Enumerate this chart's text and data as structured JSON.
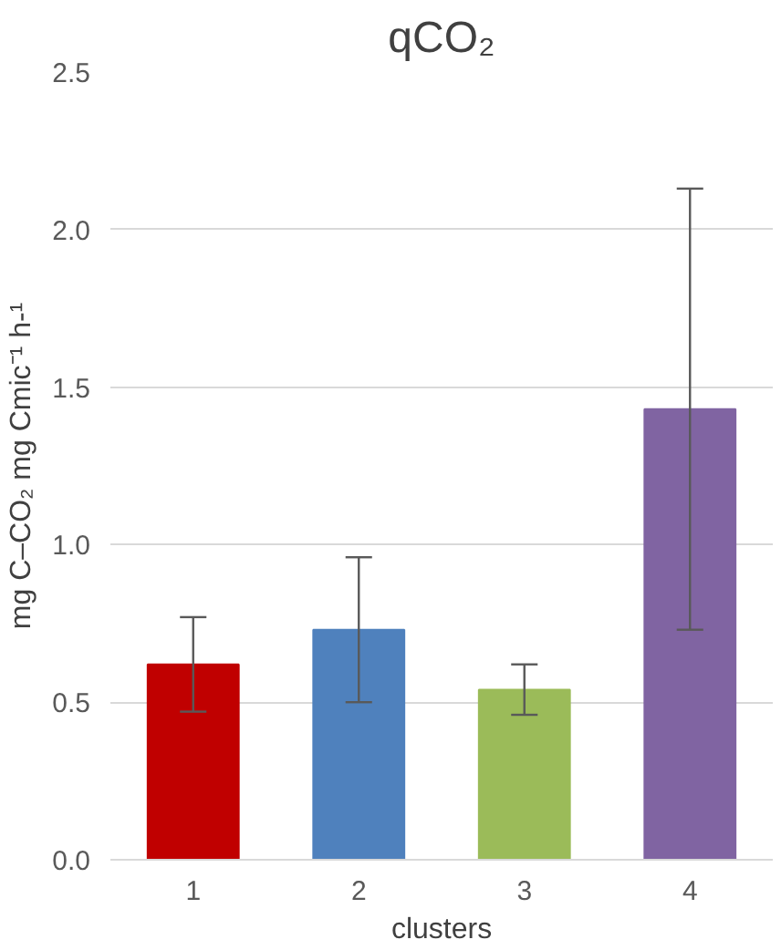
{
  "chart_data": {
    "type": "bar",
    "title": "qCO₂",
    "xlabel": "clusters",
    "ylabel": "mg C–CO₂ mg Cmic⁻¹ h-¹",
    "categories": [
      "1",
      "2",
      "3",
      "4"
    ],
    "values": [
      0.62,
      0.73,
      0.54,
      1.43
    ],
    "colors": [
      "#c00000",
      "#4f81bd",
      "#9bbb59",
      "#8064a2"
    ],
    "errors": [
      [
        0.47,
        0.77
      ],
      [
        0.5,
        0.96
      ],
      [
        0.46,
        0.62
      ],
      [
        0.73,
        2.13
      ]
    ],
    "ylim": [
      0,
      2.5
    ],
    "yticks": [
      {
        "value": 0,
        "label": "0.0"
      },
      {
        "value": 0.5,
        "label": "0.5"
      },
      {
        "value": 1,
        "label": "1.0"
      },
      {
        "value": 1.5,
        "label": "1.5"
      },
      {
        "value": 2,
        "label": "2.0"
      },
      {
        "value": 2.5,
        "label": "2.5"
      }
    ],
    "grid": "y"
  }
}
